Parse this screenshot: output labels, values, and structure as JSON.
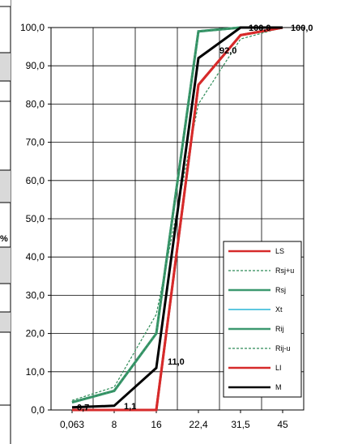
{
  "chart_data": {
    "type": "line",
    "title": "",
    "xlabel": "",
    "ylabel": "",
    "percent_label": "%",
    "categories": [
      "0,063",
      "8",
      "16",
      "22,4",
      "31,5",
      "45"
    ],
    "y_tick_labels": [
      "0,0",
      "10,0",
      "20,0",
      "30,0",
      "40,0",
      "50,0",
      "60,0",
      "70,0",
      "80,0",
      "90,0",
      "100,0"
    ],
    "ylim": [
      0,
      100
    ],
    "grid": true,
    "legend_position": "bottom-right",
    "series": [
      {
        "name": "LS",
        "values": [
          0,
          0,
          0,
          85,
          98,
          100
        ],
        "color": "#d62a2a",
        "dashed": false,
        "width": 3
      },
      {
        "name": "Rsj+u",
        "values": [
          2.5,
          6,
          25,
          80,
          97,
          100
        ],
        "color": "#2e8b57",
        "dashed": true,
        "width": 1.2
      },
      {
        "name": "Rsj",
        "values": [
          2,
          5,
          20,
          99,
          100,
          100
        ],
        "color": "#3d9970",
        "dashed": false,
        "width": 3
      },
      {
        "name": "Xt",
        "values": [
          2,
          5,
          20,
          99,
          100,
          100
        ],
        "color": "#29b6d6",
        "dashed": false,
        "width": 1.5
      },
      {
        "name": "Rij",
        "values": [
          2,
          5,
          20,
          99,
          100,
          100
        ],
        "color": "#3d9970",
        "dashed": false,
        "width": 3
      },
      {
        "name": "Rij-u",
        "values": [
          2,
          5,
          20,
          99,
          100,
          100
        ],
        "color": "#2e8b57",
        "dashed": true,
        "width": 1.2
      },
      {
        "name": "LI",
        "values": [
          0,
          0,
          0,
          85,
          98,
          100
        ],
        "color": "#d62a2a",
        "dashed": false,
        "width": 3
      },
      {
        "name": "M",
        "values": [
          0.7,
          1.1,
          11.0,
          92.0,
          100,
          100
        ],
        "color": "#000000",
        "dashed": false,
        "width": 3
      }
    ],
    "data_labels": [
      {
        "series": "M",
        "index": 0,
        "text": "0,7"
      },
      {
        "series": "M",
        "index": 1,
        "text": "1,1"
      },
      {
        "series": "M",
        "index": 2,
        "text": "11,0"
      },
      {
        "series": "M",
        "index": 3,
        "text": "92,0"
      },
      {
        "series": "M",
        "index": 4,
        "text": "100,0"
      },
      {
        "series": "M",
        "index": 5,
        "text": "100,0"
      }
    ]
  }
}
